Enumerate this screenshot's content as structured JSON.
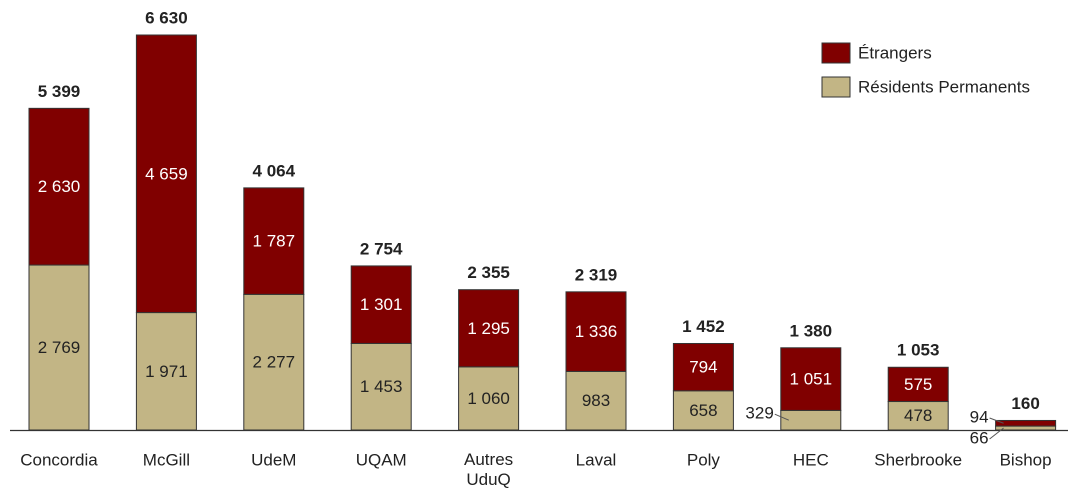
{
  "chart_data": {
    "type": "bar",
    "stacked": true,
    "categories": [
      "Concordia",
      "McGill",
      "UdeM",
      "UQAM",
      "Autres UduQ",
      "Laval",
      "Poly",
      "HEC",
      "Sherbrooke",
      "Bishop"
    ],
    "series": [
      {
        "name": "Résidents Permanents",
        "color": "#c2b585",
        "values": [
          2769,
          1971,
          2277,
          1453,
          1060,
          983,
          658,
          329,
          478,
          66
        ],
        "value_labels": [
          "2 769",
          "1 971",
          "2 277",
          "1 453",
          "1 060",
          "983",
          "658",
          "329",
          "478",
          "66"
        ]
      },
      {
        "name": "Étrangers",
        "color": "#800000",
        "values": [
          2630,
          4659,
          1787,
          1301,
          1295,
          1336,
          794,
          1051,
          575,
          94
        ],
        "value_labels": [
          "2 630",
          "4 659",
          "1 787",
          "1 301",
          "1 295",
          "1 336",
          "794",
          "1 051",
          "575",
          "94"
        ]
      }
    ],
    "totals": [
      5399,
      6630,
      4064,
      2754,
      2355,
      2319,
      1452,
      1380,
      1053,
      160
    ],
    "total_labels": [
      "5 399",
      "6 630",
      "4 064",
      "2 754",
      "2 355",
      "2 319",
      "1 452",
      "1 380",
      "1 053",
      "160"
    ],
    "legend": "top-right"
  }
}
